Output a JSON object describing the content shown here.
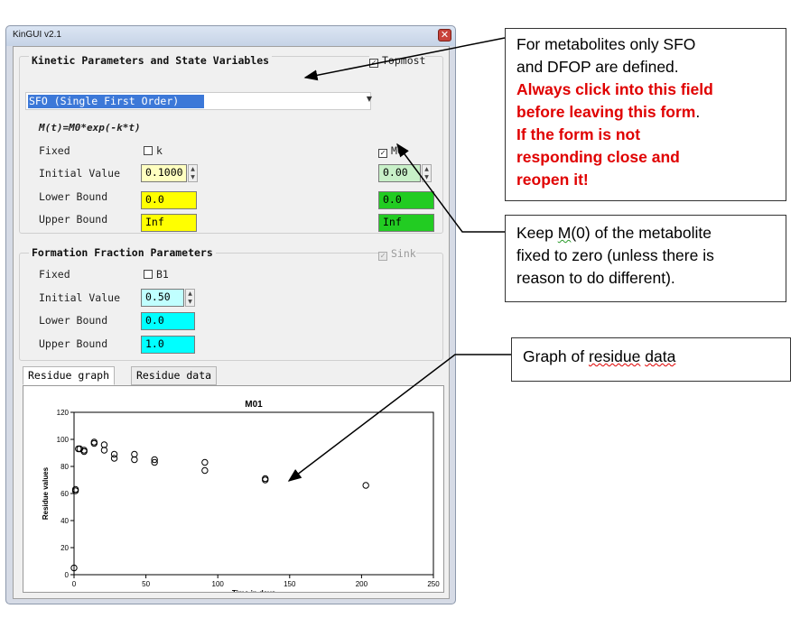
{
  "window": {
    "title": "KinGUI v2.1",
    "close_label": "✕"
  },
  "kinetic": {
    "header": "Kinetic Parameters and State Variables",
    "topmost_label": "Topmost",
    "model_selected": "SFO  (Single First Order)",
    "equation": "M(t)=M0*exp(-k*t)",
    "fixed_label": "Fixed",
    "initial_label": "Initial Value",
    "lower_label": "Lower Bound",
    "upper_label": "Upper Bound",
    "k": {
      "name": "k",
      "initial": "0.1000",
      "lower": "0.0",
      "upper": "Inf"
    },
    "m0": {
      "name": "M0",
      "initial": "0.00",
      "lower": "0.0",
      "upper": "Inf"
    }
  },
  "formation": {
    "header": "Formation Fraction Parameters",
    "sink_label": "Sink",
    "fixed_label": "Fixed",
    "initial_label": "Initial Value",
    "lower_label": "Lower Bound",
    "upper_label": "Upper Bound",
    "b1": {
      "name": "B1",
      "initial": "0.50",
      "lower": "0.0",
      "upper": "1.0"
    }
  },
  "tabs": {
    "graph": "Residue graph",
    "data": "Residue data"
  },
  "colors": {
    "k_field": "#ffff00",
    "k_initial": "#ffffc0",
    "m0_field": "#22cc22",
    "m0_initial": "#c8f0c8",
    "b1_field": "#00ffff",
    "b1_initial": "#c0ffff",
    "selection": "#3c78d8"
  },
  "chart_data": {
    "type": "scatter",
    "title": "M01",
    "xlabel": "Time in days",
    "ylabel": "Residue values",
    "xlim": [
      0,
      250
    ],
    "ylim": [
      0,
      120
    ],
    "xticks": [
      "0",
      "50",
      "100",
      "150",
      "200",
      "250"
    ],
    "yticks": [
      "0",
      "20",
      "40",
      "60",
      "80",
      "100",
      "120"
    ],
    "grid": false,
    "points": [
      {
        "x": 0,
        "y": 5
      },
      {
        "x": 1,
        "y": 62
      },
      {
        "x": 1,
        "y": 63
      },
      {
        "x": 3,
        "y": 93
      },
      {
        "x": 4,
        "y": 93
      },
      {
        "x": 7,
        "y": 91
      },
      {
        "x": 7,
        "y": 92
      },
      {
        "x": 14,
        "y": 97
      },
      {
        "x": 14,
        "y": 98
      },
      {
        "x": 21,
        "y": 96
      },
      {
        "x": 21,
        "y": 92
      },
      {
        "x": 28,
        "y": 89
      },
      {
        "x": 28,
        "y": 86
      },
      {
        "x": 42,
        "y": 89
      },
      {
        "x": 42,
        "y": 85
      },
      {
        "x": 56,
        "y": 85
      },
      {
        "x": 56,
        "y": 83
      },
      {
        "x": 91,
        "y": 83
      },
      {
        "x": 91,
        "y": 77
      },
      {
        "x": 133,
        "y": 71
      },
      {
        "x": 133,
        "y": 70
      },
      {
        "x": 203,
        "y": 66
      }
    ]
  },
  "annotations": {
    "note1": {
      "line1": "For metabolites only SFO",
      "line2": "and DFOP are defined.",
      "red1": "Always click into this field",
      "red2": "before leaving this form",
      "red2_end": ".",
      "red3": "If the form is not",
      "red4": "responding close and",
      "red5": "reopen it!"
    },
    "note2": {
      "line1_pre": "Keep ",
      "line1_m": "M",
      "line1_post": "(0) of the metabolite",
      "line2": "fixed to zero (unless there is",
      "line3": "reason to do different)."
    },
    "note3": {
      "pre": "Graph of ",
      "word1": "residue",
      "space": " ",
      "word2": "data"
    }
  }
}
